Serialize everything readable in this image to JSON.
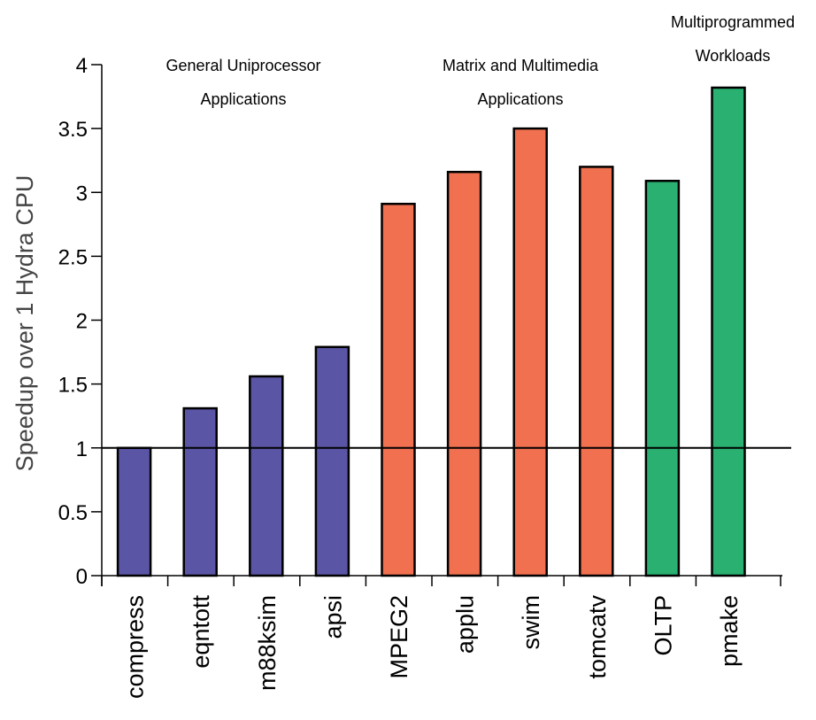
{
  "chart_data": {
    "type": "bar",
    "categories": [
      "compress",
      "eqntott",
      "m88ksim",
      "apsi",
      "MPEG2",
      "applu",
      "swim",
      "tomcatv",
      "OLTP",
      "pmake"
    ],
    "values": [
      1.0,
      1.31,
      1.56,
      1.79,
      2.91,
      3.16,
      3.5,
      3.2,
      3.09,
      3.82
    ],
    "colors": [
      "#5a55a5",
      "#5a55a5",
      "#5a55a5",
      "#5a55a5",
      "#f07050",
      "#f07050",
      "#f07050",
      "#f07050",
      "#2ab070",
      "#2ab070"
    ],
    "ylabel": "Speedup over 1 Hydra CPU",
    "xlabel": "",
    "title": "",
    "ylim": [
      0,
      4
    ],
    "yticks": [
      "0",
      "0.5",
      "1",
      "1.5",
      "2",
      "2.5",
      "3",
      "3.5",
      "4"
    ],
    "reference_line": 1,
    "grid": false,
    "groups": [
      {
        "lines": [
          "General Uniprocessor",
          "Applications"
        ],
        "categories": [
          "compress",
          "eqntott",
          "m88ksim",
          "apsi"
        ],
        "color": "#5a55a5"
      },
      {
        "lines": [
          "Matrix and Multimedia",
          "Applications"
        ],
        "categories": [
          "MPEG2",
          "applu",
          "swim",
          "tomcatv"
        ],
        "color": "#f07050"
      },
      {
        "lines": [
          "Multiprogrammed",
          "Workloads"
        ],
        "categories": [
          "OLTP",
          "pmake"
        ],
        "color": "#2ab070"
      }
    ]
  }
}
